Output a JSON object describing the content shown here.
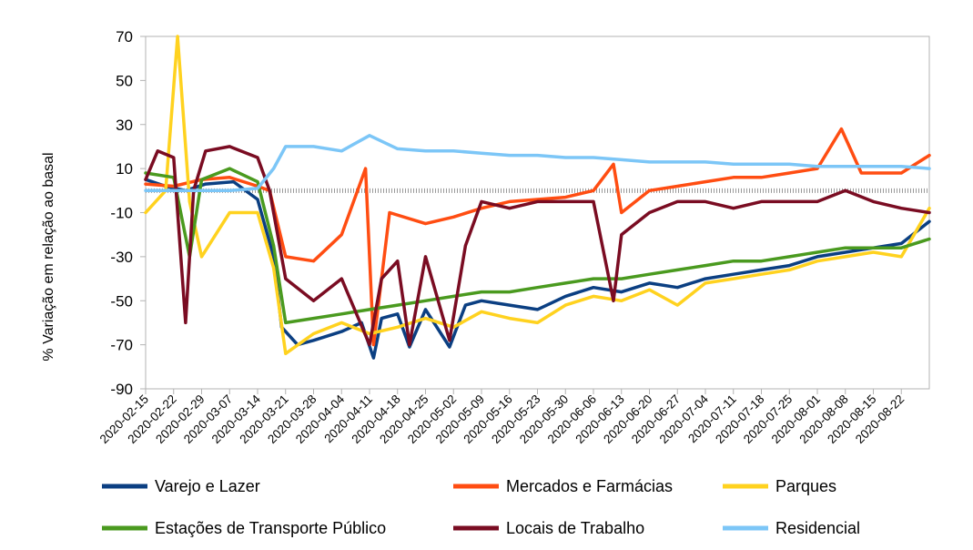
{
  "chart_data": {
    "type": "line",
    "title": "",
    "xlabel": "",
    "ylabel": "% Variação em relação ao basal",
    "ylim": [
      -90,
      70
    ],
    "yticks": [
      70,
      50,
      30,
      10,
      -10,
      -30,
      -50,
      -70,
      -90
    ],
    "x_start": "2020-02-15",
    "x_end": "2020-08-29",
    "xtick_labels": [
      "2020-02-15",
      "2020-02-22",
      "2020-02-29",
      "2020-03-07",
      "2020-03-14",
      "2020-03-21",
      "2020-03-28",
      "2020-04-04",
      "2020-04-11",
      "2020-04-18",
      "2020-04-25",
      "2020-05-02",
      "2020-05-09",
      "2020-05-16",
      "2020-05-23",
      "2020-05-30",
      "2020-06-06",
      "2020-06-13",
      "2020-06-20",
      "2020-06-27",
      "2020-07-04",
      "2020-07-11",
      "2020-07-18",
      "2020-07-25",
      "2020-08-01",
      "2020-08-08",
      "2020-08-15",
      "2020-08-22"
    ],
    "legend_position": "bottom",
    "grid": false,
    "series": [
      {
        "name": "Varejo e Lazer",
        "color": "#0b3f82",
        "points": [
          [
            "2020-02-15",
            5
          ],
          [
            "2020-02-20",
            2
          ],
          [
            "2020-02-25",
            0
          ],
          [
            "2020-03-01",
            3
          ],
          [
            "2020-03-08",
            4
          ],
          [
            "2020-03-14",
            -4
          ],
          [
            "2020-03-18",
            -30
          ],
          [
            "2020-03-20",
            -62
          ],
          [
            "2020-03-24",
            -70
          ],
          [
            "2020-03-28",
            -68
          ],
          [
            "2020-04-04",
            -64
          ],
          [
            "2020-04-09",
            -60
          ],
          [
            "2020-04-12",
            -76
          ],
          [
            "2020-04-14",
            -58
          ],
          [
            "2020-04-18",
            -56
          ],
          [
            "2020-04-21",
            -71
          ],
          [
            "2020-04-25",
            -54
          ],
          [
            "2020-05-01",
            -71
          ],
          [
            "2020-05-05",
            -52
          ],
          [
            "2020-05-09",
            -50
          ],
          [
            "2020-05-16",
            -52
          ],
          [
            "2020-05-23",
            -54
          ],
          [
            "2020-05-30",
            -48
          ],
          [
            "2020-06-06",
            -44
          ],
          [
            "2020-06-13",
            -46
          ],
          [
            "2020-06-20",
            -42
          ],
          [
            "2020-06-27",
            -44
          ],
          [
            "2020-07-04",
            -40
          ],
          [
            "2020-07-11",
            -38
          ],
          [
            "2020-07-18",
            -36
          ],
          [
            "2020-07-25",
            -34
          ],
          [
            "2020-08-01",
            -30
          ],
          [
            "2020-08-08",
            -28
          ],
          [
            "2020-08-15",
            -26
          ],
          [
            "2020-08-22",
            -24
          ],
          [
            "2020-08-29",
            -14
          ]
        ]
      },
      {
        "name": "Mercados e Farmácias",
        "color": "#ff4d12",
        "points": [
          [
            "2020-02-15",
            3
          ],
          [
            "2020-02-22",
            2
          ],
          [
            "2020-02-29",
            5
          ],
          [
            "2020-03-07",
            6
          ],
          [
            "2020-03-14",
            2
          ],
          [
            "2020-03-17",
            0
          ],
          [
            "2020-03-21",
            -30
          ],
          [
            "2020-03-28",
            -32
          ],
          [
            "2020-04-04",
            -20
          ],
          [
            "2020-04-10",
            10
          ],
          [
            "2020-04-12",
            -70
          ],
          [
            "2020-04-16",
            -10
          ],
          [
            "2020-04-25",
            -15
          ],
          [
            "2020-05-02",
            -12
          ],
          [
            "2020-05-09",
            -8
          ],
          [
            "2020-05-16",
            -5
          ],
          [
            "2020-05-23",
            -4
          ],
          [
            "2020-05-30",
            -3
          ],
          [
            "2020-06-06",
            0
          ],
          [
            "2020-06-11",
            12
          ],
          [
            "2020-06-13",
            -10
          ],
          [
            "2020-06-20",
            0
          ],
          [
            "2020-06-27",
            2
          ],
          [
            "2020-07-04",
            4
          ],
          [
            "2020-07-11",
            6
          ],
          [
            "2020-07-18",
            6
          ],
          [
            "2020-07-25",
            8
          ],
          [
            "2020-08-01",
            10
          ],
          [
            "2020-08-07",
            28
          ],
          [
            "2020-08-12",
            8
          ],
          [
            "2020-08-22",
            8
          ],
          [
            "2020-08-29",
            16
          ]
        ]
      },
      {
        "name": "Parques",
        "color": "#ffd21f",
        "points": [
          [
            "2020-02-15",
            -10
          ],
          [
            "2020-02-20",
            0
          ],
          [
            "2020-02-23",
            70
          ],
          [
            "2020-02-26",
            -5
          ],
          [
            "2020-02-29",
            -30
          ],
          [
            "2020-03-07",
            -10
          ],
          [
            "2020-03-14",
            -10
          ],
          [
            "2020-03-18",
            -35
          ],
          [
            "2020-03-21",
            -74
          ],
          [
            "2020-03-28",
            -65
          ],
          [
            "2020-04-04",
            -60
          ],
          [
            "2020-04-11",
            -65
          ],
          [
            "2020-04-18",
            -62
          ],
          [
            "2020-04-25",
            -58
          ],
          [
            "2020-05-02",
            -62
          ],
          [
            "2020-05-09",
            -55
          ],
          [
            "2020-05-16",
            -58
          ],
          [
            "2020-05-23",
            -60
          ],
          [
            "2020-05-30",
            -52
          ],
          [
            "2020-06-06",
            -48
          ],
          [
            "2020-06-13",
            -50
          ],
          [
            "2020-06-20",
            -45
          ],
          [
            "2020-06-27",
            -52
          ],
          [
            "2020-07-04",
            -42
          ],
          [
            "2020-07-11",
            -40
          ],
          [
            "2020-07-18",
            -38
          ],
          [
            "2020-07-25",
            -36
          ],
          [
            "2020-08-01",
            -32
          ],
          [
            "2020-08-08",
            -30
          ],
          [
            "2020-08-15",
            -28
          ],
          [
            "2020-08-22",
            -30
          ],
          [
            "2020-08-29",
            -8
          ]
        ]
      },
      {
        "name": "Estações de Transporte Público",
        "color": "#4a9a1f",
        "points": [
          [
            "2020-02-15",
            8
          ],
          [
            "2020-02-22",
            6
          ],
          [
            "2020-02-26",
            -30
          ],
          [
            "2020-02-29",
            5
          ],
          [
            "2020-03-07",
            10
          ],
          [
            "2020-03-14",
            4
          ],
          [
            "2020-03-18",
            -25
          ],
          [
            "2020-03-21",
            -60
          ],
          [
            "2020-03-28",
            -58
          ],
          [
            "2020-04-04",
            -56
          ],
          [
            "2020-04-11",
            -54
          ],
          [
            "2020-04-18",
            -52
          ],
          [
            "2020-04-25",
            -50
          ],
          [
            "2020-05-02",
            -48
          ],
          [
            "2020-05-09",
            -46
          ],
          [
            "2020-05-16",
            -46
          ],
          [
            "2020-05-23",
            -44
          ],
          [
            "2020-05-30",
            -42
          ],
          [
            "2020-06-06",
            -40
          ],
          [
            "2020-06-13",
            -40
          ],
          [
            "2020-06-20",
            -38
          ],
          [
            "2020-06-27",
            -36
          ],
          [
            "2020-07-04",
            -34
          ],
          [
            "2020-07-11",
            -32
          ],
          [
            "2020-07-18",
            -32
          ],
          [
            "2020-07-25",
            -30
          ],
          [
            "2020-08-01",
            -28
          ],
          [
            "2020-08-08",
            -26
          ],
          [
            "2020-08-15",
            -26
          ],
          [
            "2020-08-22",
            -26
          ],
          [
            "2020-08-29",
            -22
          ]
        ]
      },
      {
        "name": "Locais de Trabalho",
        "color": "#7a0c22",
        "points": [
          [
            "2020-02-15",
            5
          ],
          [
            "2020-02-18",
            18
          ],
          [
            "2020-02-22",
            15
          ],
          [
            "2020-02-25",
            -60
          ],
          [
            "2020-02-27",
            0
          ],
          [
            "2020-03-01",
            18
          ],
          [
            "2020-03-07",
            20
          ],
          [
            "2020-03-14",
            15
          ],
          [
            "2020-03-17",
            0
          ],
          [
            "2020-03-21",
            -40
          ],
          [
            "2020-03-28",
            -50
          ],
          [
            "2020-04-04",
            -40
          ],
          [
            "2020-04-11",
            -70
          ],
          [
            "2020-04-14",
            -40
          ],
          [
            "2020-04-18",
            -32
          ],
          [
            "2020-04-21",
            -70
          ],
          [
            "2020-04-25",
            -30
          ],
          [
            "2020-05-01",
            -68
          ],
          [
            "2020-05-05",
            -25
          ],
          [
            "2020-05-09",
            -5
          ],
          [
            "2020-05-16",
            -8
          ],
          [
            "2020-05-23",
            -5
          ],
          [
            "2020-05-30",
            -5
          ],
          [
            "2020-06-06",
            -5
          ],
          [
            "2020-06-11",
            -50
          ],
          [
            "2020-06-13",
            -20
          ],
          [
            "2020-06-20",
            -10
          ],
          [
            "2020-06-27",
            -5
          ],
          [
            "2020-07-04",
            -5
          ],
          [
            "2020-07-11",
            -8
          ],
          [
            "2020-07-18",
            -5
          ],
          [
            "2020-07-25",
            -5
          ],
          [
            "2020-08-01",
            -5
          ],
          [
            "2020-08-08",
            0
          ],
          [
            "2020-08-15",
            -5
          ],
          [
            "2020-08-22",
            -8
          ],
          [
            "2020-08-29",
            -10
          ]
        ]
      },
      {
        "name": "Residencial",
        "color": "#7cc6f7",
        "points": [
          [
            "2020-02-15",
            0
          ],
          [
            "2020-02-22",
            0
          ],
          [
            "2020-02-29",
            0
          ],
          [
            "2020-03-07",
            0
          ],
          [
            "2020-03-14",
            1
          ],
          [
            "2020-03-18",
            10
          ],
          [
            "2020-03-21",
            20
          ],
          [
            "2020-03-28",
            20
          ],
          [
            "2020-04-04",
            18
          ],
          [
            "2020-04-11",
            25
          ],
          [
            "2020-04-18",
            19
          ],
          [
            "2020-04-25",
            18
          ],
          [
            "2020-05-02",
            18
          ],
          [
            "2020-05-09",
            17
          ],
          [
            "2020-05-16",
            16
          ],
          [
            "2020-05-23",
            16
          ],
          [
            "2020-05-30",
            15
          ],
          [
            "2020-06-06",
            15
          ],
          [
            "2020-06-13",
            14
          ],
          [
            "2020-06-20",
            13
          ],
          [
            "2020-06-27",
            13
          ],
          [
            "2020-07-04",
            13
          ],
          [
            "2020-07-11",
            12
          ],
          [
            "2020-07-18",
            12
          ],
          [
            "2020-07-25",
            12
          ],
          [
            "2020-08-01",
            11
          ],
          [
            "2020-08-08",
            11
          ],
          [
            "2020-08-15",
            11
          ],
          [
            "2020-08-22",
            11
          ],
          [
            "2020-08-29",
            10
          ]
        ]
      }
    ]
  }
}
